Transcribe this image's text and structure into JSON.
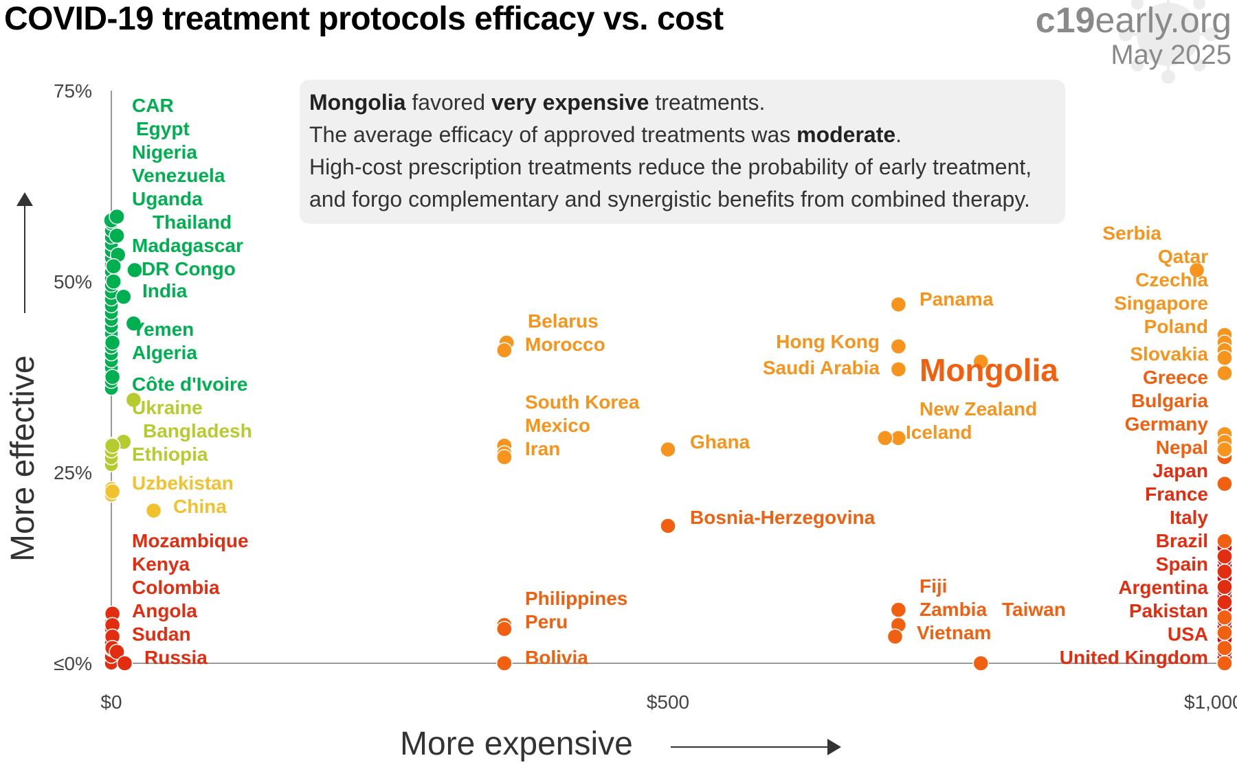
{
  "header": {
    "title": "COVID-19 treatment protocols efficacy vs. cost",
    "brand_bold": "c19",
    "brand_rest": "early.org",
    "date": "May 2025"
  },
  "infobox": {
    "country": "Mongolia",
    "l1_mid": " favored ",
    "l1_bold": "very expensive",
    "l1_end": " treatments.",
    "l2_start": "The average efficacy of approved treatments was ",
    "l2_bold": "moderate",
    "l2_end": ".",
    "l3": "High-cost prescription treatments reduce the probability of early treatment,",
    "l4": "and forgo complementary and synergistic benefits from combined therapy."
  },
  "axes": {
    "ylabel": "More effective",
    "xlabel": "More expensive"
  },
  "colors": {
    "green": "#00b050",
    "yellow_green": "#b5cc2e",
    "yellow": "#f2c12e",
    "orange": "#f7941d",
    "dark_orange": "#f06010",
    "red": "#e32d10",
    "deep_red": "#e00010",
    "axis": "#999999"
  },
  "chart_data": {
    "type": "scatter",
    "title": "COVID-19 treatment protocols efficacy vs. cost",
    "xlabel": "More expensive",
    "ylabel": "More effective",
    "xlim": [
      0,
      1000
    ],
    "ylim": [
      0,
      75
    ],
    "x_ticks": [
      {
        "value": 0,
        "label": "$0"
      },
      {
        "value": 500,
        "label": "$500"
      },
      {
        "value": 1000,
        "label": "$1,000+"
      }
    ],
    "y_ticks": [
      {
        "value": 75,
        "label": "75%"
      },
      {
        "value": 50,
        "label": "50%"
      },
      {
        "value": 25,
        "label": "25%"
      },
      {
        "value": 0,
        "label": "≤0%"
      }
    ],
    "highlight": "Mongolia",
    "points": [
      {
        "name": "CAR",
        "x": 0,
        "y": 58
      },
      {
        "name": "Egypt",
        "x": 5,
        "y": 58.5
      },
      {
        "name": "Nigeria",
        "x": 5,
        "y": 56
      },
      {
        "name": "Venezuela",
        "x": 6,
        "y": 53.5
      },
      {
        "name": "Uganda",
        "x": 2,
        "y": 52
      },
      {
        "name": "Thailand",
        "x": 20,
        "y": 51.5
      },
      {
        "name": "Madagascar",
        "x": 2,
        "y": 50
      },
      {
        "name": "DR Congo",
        "x": 21,
        "y": 51.5
      },
      {
        "name": "India",
        "x": 11,
        "y": 48
      },
      {
        "name": "Yemen",
        "x": 20,
        "y": 44.5
      },
      {
        "name": "Algeria",
        "x": 1,
        "y": 42
      },
      {
        "name": "Côte d'Ivoire",
        "x": 1,
        "y": 37.5
      },
      {
        "name": "Ukraine",
        "x": 20,
        "y": 34.5
      },
      {
        "name": "Bangladesh",
        "x": 11,
        "y": 29
      },
      {
        "name": "Ethiopia",
        "x": 1,
        "y": 28.5
      },
      {
        "name": "Uzbekistan",
        "x": 1,
        "y": 22.5
      },
      {
        "name": "China",
        "x": 38,
        "y": 20
      },
      {
        "name": "Mozambique",
        "x": 1,
        "y": 6.5
      },
      {
        "name": "Kenya",
        "x": 1,
        "y": 5
      },
      {
        "name": "Colombia",
        "x": 1,
        "y": 3.5
      },
      {
        "name": "Angola",
        "x": 1,
        "y": 2
      },
      {
        "name": "Sudan",
        "x": 5,
        "y": 1.5
      },
      {
        "name": "Russia",
        "x": 12,
        "y": 0
      },
      {
        "name": "Belarus",
        "x": 355,
        "y": 42
      },
      {
        "name": "Morocco",
        "x": 353,
        "y": 41
      },
      {
        "name": "South Korea",
        "x": 353,
        "y": 28.5
      },
      {
        "name": "Mexico",
        "x": 353,
        "y": 27.5
      },
      {
        "name": "Iran",
        "x": 353,
        "y": 27
      },
      {
        "name": "Ghana",
        "x": 500,
        "y": 28
      },
      {
        "name": "Bosnia-Herzegovina",
        "x": 500,
        "y": 18
      },
      {
        "name": "Philippines",
        "x": 353,
        "y": 5
      },
      {
        "name": "Peru",
        "x": 353,
        "y": 4.5
      },
      {
        "name": "Bolivia",
        "x": 353,
        "y": 0
      },
      {
        "name": "Panama",
        "x": 707,
        "y": 47
      },
      {
        "name": "Hong Kong",
        "x": 707,
        "y": 41.5
      },
      {
        "name": "Saudi Arabia",
        "x": 707,
        "y": 38.5
      },
      {
        "name": "Mongolia",
        "x": 781,
        "y": 39.5
      },
      {
        "name": "New Zealand",
        "x": 707,
        "y": 29.5
      },
      {
        "name": "Iceland",
        "x": 695,
        "y": 29.5
      },
      {
        "name": "Fiji",
        "x": 707,
        "y": 7
      },
      {
        "name": "Zambia",
        "x": 707,
        "y": 5
      },
      {
        "name": "Vietnam",
        "x": 704,
        "y": 3.5
      },
      {
        "name": "Taiwan",
        "x": 781,
        "y": 0
      },
      {
        "name": "Serbia",
        "x": 975,
        "y": 51.5
      },
      {
        "name": "Qatar",
        "x": 1000,
        "y": 43
      },
      {
        "name": "Czechia",
        "x": 1000,
        "y": 42
      },
      {
        "name": "Singapore",
        "x": 1000,
        "y": 41
      },
      {
        "name": "Poland",
        "x": 1000,
        "y": 40
      },
      {
        "name": "Slovakia",
        "x": 1000,
        "y": 38
      },
      {
        "name": "Greece",
        "x": 1000,
        "y": 30
      },
      {
        "name": "Bulgaria",
        "x": 1000,
        "y": 29
      },
      {
        "name": "Germany",
        "x": 1000,
        "y": 28
      },
      {
        "name": "Nepal",
        "x": 1000,
        "y": 23.5
      },
      {
        "name": "Japan",
        "x": 1000,
        "y": 16
      },
      {
        "name": "France",
        "x": 1000,
        "y": 14
      },
      {
        "name": "Italy",
        "x": 1000,
        "y": 12
      },
      {
        "name": "Brazil",
        "x": 1000,
        "y": 10
      },
      {
        "name": "Spain",
        "x": 1000,
        "y": 8
      },
      {
        "name": "Argentina",
        "x": 1000,
        "y": 6
      },
      {
        "name": "Pakistan",
        "x": 1000,
        "y": 4
      },
      {
        "name": "USA",
        "x": 1000,
        "y": 2
      },
      {
        "name": "United Kingdom",
        "x": 1000,
        "y": 0
      }
    ]
  }
}
